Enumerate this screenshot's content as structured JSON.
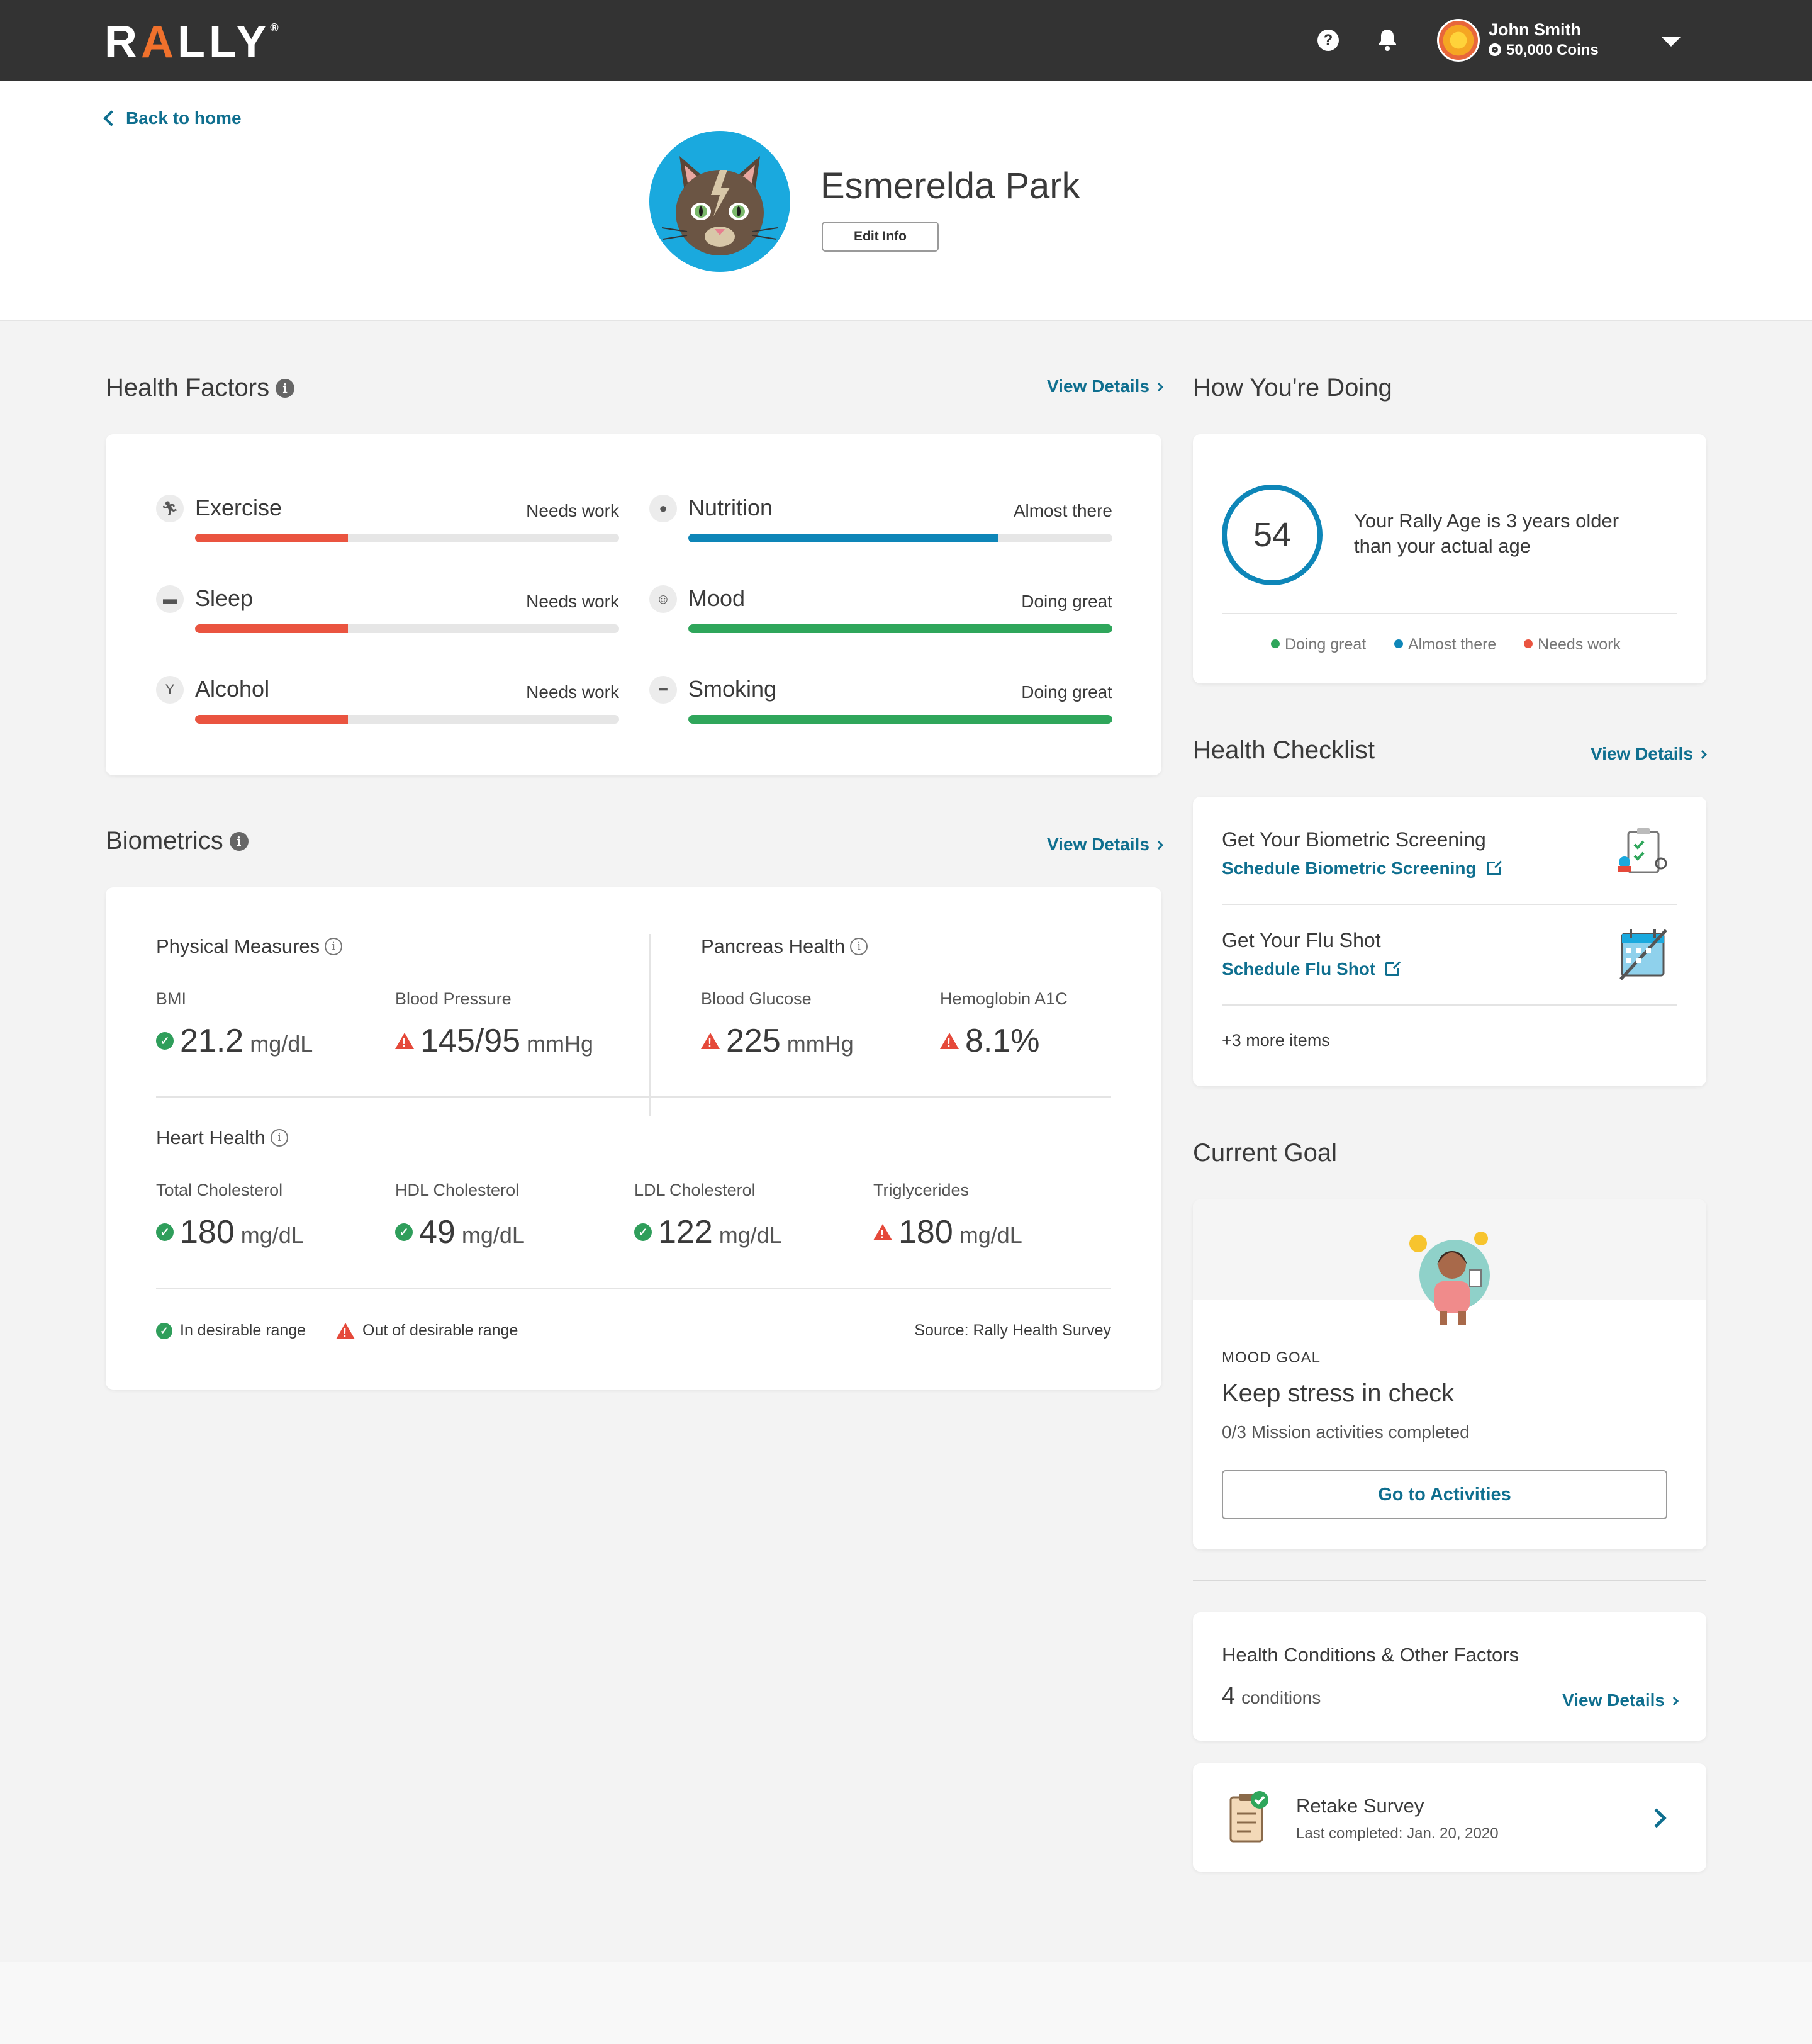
{
  "nav": {
    "logo_prefix": "R",
    "logo_a": "A",
    "logo_suffix": "LLY",
    "logo_reg": "®",
    "help_icon": "question-icon",
    "notifications_icon": "bell-icon",
    "user_name": "John Smith",
    "user_coins": "50,000 Coins"
  },
  "profile": {
    "back_link": "Back to home",
    "name": "Esmerelda Park",
    "edit_button": "Edit Info"
  },
  "health_factors": {
    "title": "Health Factors",
    "view_details": "View Details",
    "items": [
      {
        "name": "Exercise",
        "status": "Needs work",
        "level": 0.36,
        "color": "#ea5440",
        "icon": "running-icon"
      },
      {
        "name": "Nutrition",
        "status": "Almost there",
        "level": 0.73,
        "color": "#0e86b8",
        "icon": "apple-icon"
      },
      {
        "name": "Sleep",
        "status": "Needs work",
        "level": 0.36,
        "color": "#ea5440",
        "icon": "bed-icon"
      },
      {
        "name": "Mood",
        "status": "Doing great",
        "level": 1.0,
        "color": "#2fa65b",
        "icon": "smiley-icon"
      },
      {
        "name": "Alcohol",
        "status": "Needs work",
        "level": 0.36,
        "color": "#ea5440",
        "icon": "cocktail-icon"
      },
      {
        "name": "Smoking",
        "status": "Doing great",
        "level": 1.0,
        "color": "#2fa65b",
        "icon": "cigarette-icon"
      }
    ]
  },
  "biometrics": {
    "title": "Biometrics",
    "view_details": "View Details",
    "physical": {
      "title": "Physical Measures",
      "bmi_label": "BMI",
      "bmi_value": "21.2",
      "bmi_unit": "mg/dL",
      "bp_label": "Blood Pressure",
      "bp_value": "145/95",
      "bp_unit": "mmHg"
    },
    "pancreas": {
      "title": "Pancreas Health",
      "glucose_label": "Blood Glucose",
      "glucose_value": "225",
      "glucose_unit": "mmHg",
      "a1c_label": "Hemoglobin A1C",
      "a1c_value": "8.1%"
    },
    "heart": {
      "title": "Heart Health",
      "total_label": "Total Cholesterol",
      "total_value": "180",
      "total_unit": "mg/dL",
      "hdl_label": "HDL Cholesterol",
      "hdl_value": "49",
      "hdl_unit": "mg/dL",
      "ldl_label": "LDL Cholesterol",
      "ldl_value": "122",
      "ldl_unit": "mg/dL",
      "tri_label": "Triglycerides",
      "tri_value": "180",
      "tri_unit": "mg/dL"
    },
    "legend_ok": "In desirable range",
    "legend_warn": "Out of desirable range",
    "source": "Source: Rally Health Survey"
  },
  "doing": {
    "title": "How You're Doing",
    "rally_age": "54",
    "text_line1": "Your Rally Age is 3 years older",
    "text_line2": "than your actual age",
    "legend": [
      {
        "label": "Doing great",
        "color": "#2fa65b"
      },
      {
        "label": "Almost there",
        "color": "#0e86b8"
      },
      {
        "label": "Needs work",
        "color": "#ea5440"
      }
    ]
  },
  "checklist": {
    "title": "Health Checklist",
    "view_details": "View Details",
    "item1_title": "Get Your Biometric Screening",
    "item1_link": "Schedule Biometric Screening",
    "item2_title": "Get Your Flu Shot",
    "item2_link": "Schedule Flu Shot",
    "more": "+3 more items"
  },
  "goal": {
    "title": "Current Goal",
    "category": "MOOD GOAL",
    "name": "Keep stress in check",
    "progress": "0/3 Mission activities completed",
    "button": "Go to Activities"
  },
  "conditions": {
    "title": "Health Conditions & Other Factors",
    "count": "4",
    "count_label": "conditions",
    "view_details": "View Details"
  },
  "survey": {
    "title": "Retake Survey",
    "subtitle": "Last completed: Jan. 20, 2020"
  }
}
